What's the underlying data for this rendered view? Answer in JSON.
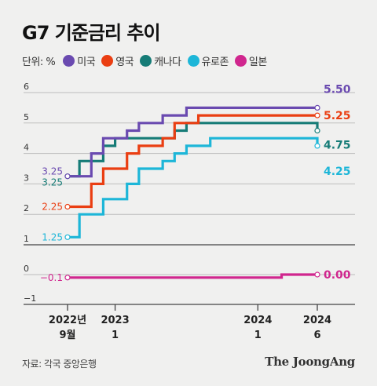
{
  "title": "G7 기준금리 추이",
  "legend": {
    "unit_label": "단위: %",
    "items": [
      {
        "name": "미국",
        "color": "#6a4ab0"
      },
      {
        "name": "영국",
        "color": "#ea3e12"
      },
      {
        "name": "캐나다",
        "color": "#167c77"
      },
      {
        "name": "유로존",
        "color": "#1db6d8"
      },
      {
        "name": "일본",
        "color": "#d0268e"
      }
    ]
  },
  "source": "자료: 각국 중앙은행",
  "brand": "The JoongAng",
  "chart_data": {
    "type": "line",
    "step": true,
    "title": "G7 기준금리 추이",
    "ylabel": "단위: %",
    "x_range": [
      "2022-09",
      "2024-06"
    ],
    "y_ticks": [
      "6",
      "5",
      "4",
      "3",
      "2",
      "1",
      "0",
      "−1"
    ],
    "ylim_upper": [
      1,
      6
    ],
    "ylim_lower": [
      -1,
      0
    ],
    "axis_break": true,
    "x_ticks": [
      {
        "x": "2022-09",
        "line1": "2022년",
        "line2": "9월"
      },
      {
        "x": "2023-01",
        "line1": "2023",
        "line2": "1"
      },
      {
        "x": "2024-01",
        "line1": "2024",
        "line2": "1"
      },
      {
        "x": "2024-06",
        "line1": "2024",
        "line2": "6"
      }
    ],
    "series": [
      {
        "name": "미국",
        "color": "#6a4ab0",
        "start_label": "3.25",
        "end_label": "5.50",
        "points": [
          [
            "2022-09",
            3.25
          ],
          [
            "2022-11",
            4.0
          ],
          [
            "2022-12",
            4.5
          ],
          [
            "2023-02",
            4.75
          ],
          [
            "2023-03",
            5.0
          ],
          [
            "2023-05",
            5.25
          ],
          [
            "2023-07",
            5.5
          ],
          [
            "2024-06",
            5.5
          ]
        ]
      },
      {
        "name": "영국",
        "color": "#ea3e12",
        "start_label": "2.25",
        "end_label": "5.25",
        "points": [
          [
            "2022-09",
            2.25
          ],
          [
            "2022-11",
            3.0
          ],
          [
            "2022-12",
            3.5
          ],
          [
            "2023-02",
            4.0
          ],
          [
            "2023-03",
            4.25
          ],
          [
            "2023-05",
            4.5
          ],
          [
            "2023-06",
            5.0
          ],
          [
            "2023-08",
            5.25
          ],
          [
            "2024-06",
            5.25
          ]
        ]
      },
      {
        "name": "캐나다",
        "color": "#167c77",
        "start_label": "3.25",
        "end_label": "4.75",
        "points": [
          [
            "2022-09",
            3.25
          ],
          [
            "2022-10",
            3.75
          ],
          [
            "2022-12",
            4.25
          ],
          [
            "2023-01",
            4.5
          ],
          [
            "2023-06",
            4.75
          ],
          [
            "2023-07",
            5.0
          ],
          [
            "2024-06",
            4.75
          ]
        ]
      },
      {
        "name": "유로존",
        "color": "#1db6d8",
        "start_label": "1.25",
        "end_label": "4.25",
        "points": [
          [
            "2022-09",
            1.25
          ],
          [
            "2022-10",
            2.0
          ],
          [
            "2022-12",
            2.5
          ],
          [
            "2023-02",
            3.0
          ],
          [
            "2023-03",
            3.5
          ],
          [
            "2023-05",
            3.75
          ],
          [
            "2023-06",
            4.0
          ],
          [
            "2023-07",
            4.25
          ],
          [
            "2023-09",
            4.5
          ],
          [
            "2024-06",
            4.25
          ]
        ]
      },
      {
        "name": "일본",
        "color": "#d0268e",
        "start_label": "−0.1",
        "end_label": "0.00",
        "points": [
          [
            "2022-09",
            -0.1
          ],
          [
            "2024-03",
            0.0
          ],
          [
            "2024-06",
            0.0
          ]
        ]
      }
    ]
  }
}
